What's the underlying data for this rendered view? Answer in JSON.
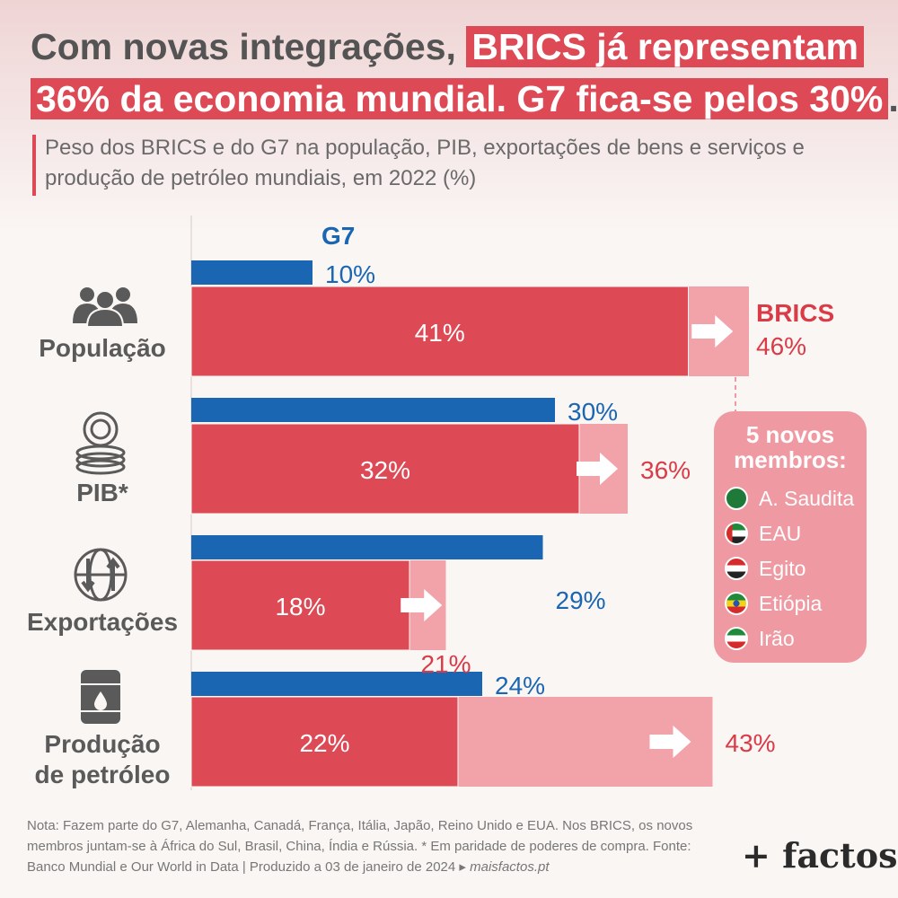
{
  "title": {
    "line1_plain": "Com novas integrações,",
    "line1_highlight": "BRICS já representam",
    "line2_highlight": "36% da economia mundial. G7 fica-se pelos 30%",
    "line2_end": "."
  },
  "subtitle": "Peso dos BRICS e do G7 na população, PIB, exportações de bens e serviços e produção de petróleo mundiais, em 2022 (%)",
  "colors": {
    "g7": "#1a66b3",
    "brics": "#dd4a55",
    "brics_new": "#f2a3aa",
    "text": "#555555"
  },
  "chart_data": {
    "type": "bar",
    "orientation": "horizontal",
    "categories": [
      "População",
      "PIB*",
      "Exportações",
      "Produção de petróleo"
    ],
    "category_icons": [
      "people-icon",
      "coins-icon",
      "globe-exchange-icon",
      "oil-barrel-icon"
    ],
    "series": [
      {
        "name": "G7",
        "values": [
          10,
          30,
          29,
          24
        ],
        "labels": [
          "10%",
          "30%",
          "29%",
          "24%"
        ]
      },
      {
        "name": "BRICS",
        "values": [
          41,
          32,
          18,
          22
        ],
        "labels": [
          "41%",
          "32%",
          "18%",
          "22%"
        ]
      },
      {
        "name": "BRICS",
        "values": [
          46,
          36,
          21,
          43
        ],
        "labels": [
          "46%",
          "36%",
          "21%",
          "43%"
        ]
      }
    ],
    "xlim": [
      0,
      50
    ]
  },
  "members": {
    "title": "5 novos membros:",
    "items": [
      {
        "name": "A. Saudita",
        "flag": "saudi-arabia-flag-icon"
      },
      {
        "name": "EAU",
        "flag": "uae-flag-icon"
      },
      {
        "name": "Egito",
        "flag": "egypt-flag-icon"
      },
      {
        "name": "Etiópia",
        "flag": "ethiopia-flag-icon"
      },
      {
        "name": "Irão",
        "flag": "iran-flag-icon"
      }
    ]
  },
  "note": {
    "text": "Nota: Fazem parte do G7, Alemanha, Canadá, França, Itália, Japão, Reino Unido e EUA. Nos BRICS, os novos membros juntam-se à África do Sul, Brasil, China, Índia e Rússia. * Em paridade de poderes de compra. Fonte: Banco Mundial e Our World in Data | Produzido a 03 de janeiro de 2024 ▸",
    "link": "maisfactos.pt"
  },
  "brand": "+ factos"
}
